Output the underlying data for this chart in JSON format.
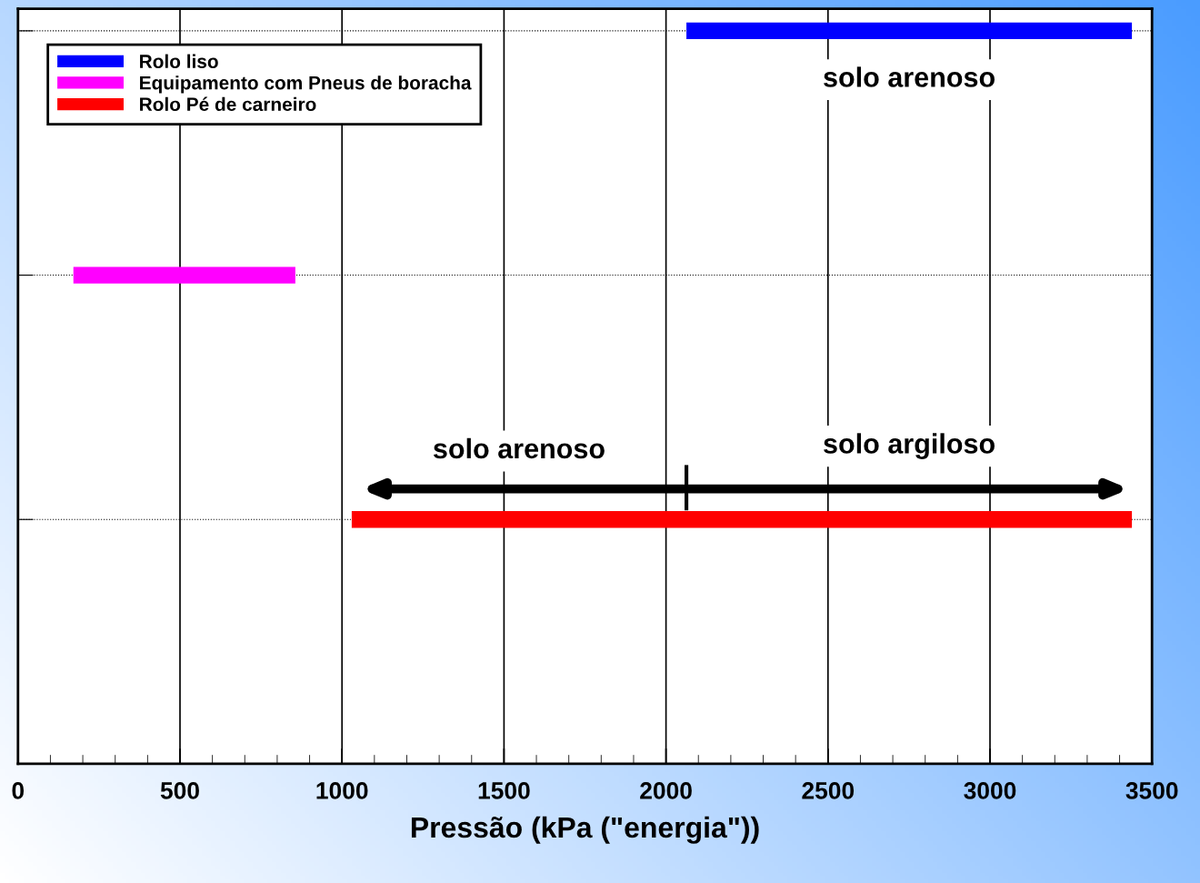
{
  "chart_data": {
    "type": "bar",
    "orientation": "horizontal",
    "categories": [
      null,
      null,
      null
    ],
    "series": [
      {
        "name": "Rolo liso",
        "color": "#0000ff",
        "values": [
          1375,
          null,
          null
        ],
        "base": [
          2063,
          null,
          null
        ]
      },
      {
        "name": "Equipamento com Pneus de boracha",
        "color": "#ff00ff",
        "values": [
          null,
          685,
          null
        ],
        "base": [
          null,
          171,
          null
        ]
      },
      {
        "name": "Rolo Pé de carneiro",
        "color": "#ff0000",
        "values": [
          null,
          null,
          2408
        ],
        "base": [
          null,
          null,
          1030
        ]
      }
    ],
    "xlabel": "Pressão (kPa (\"energia\"))",
    "xlim": [
      0,
      3500
    ],
    "xticks": [
      0,
      500,
      1000,
      1500,
      2000,
      2500,
      3000,
      3500
    ],
    "tick_labels": "x",
    "grid": true,
    "legend": "top left",
    "annotations": [
      "solo arenoso",
      "solo arenoso",
      "solo argiloso"
    ]
  }
}
